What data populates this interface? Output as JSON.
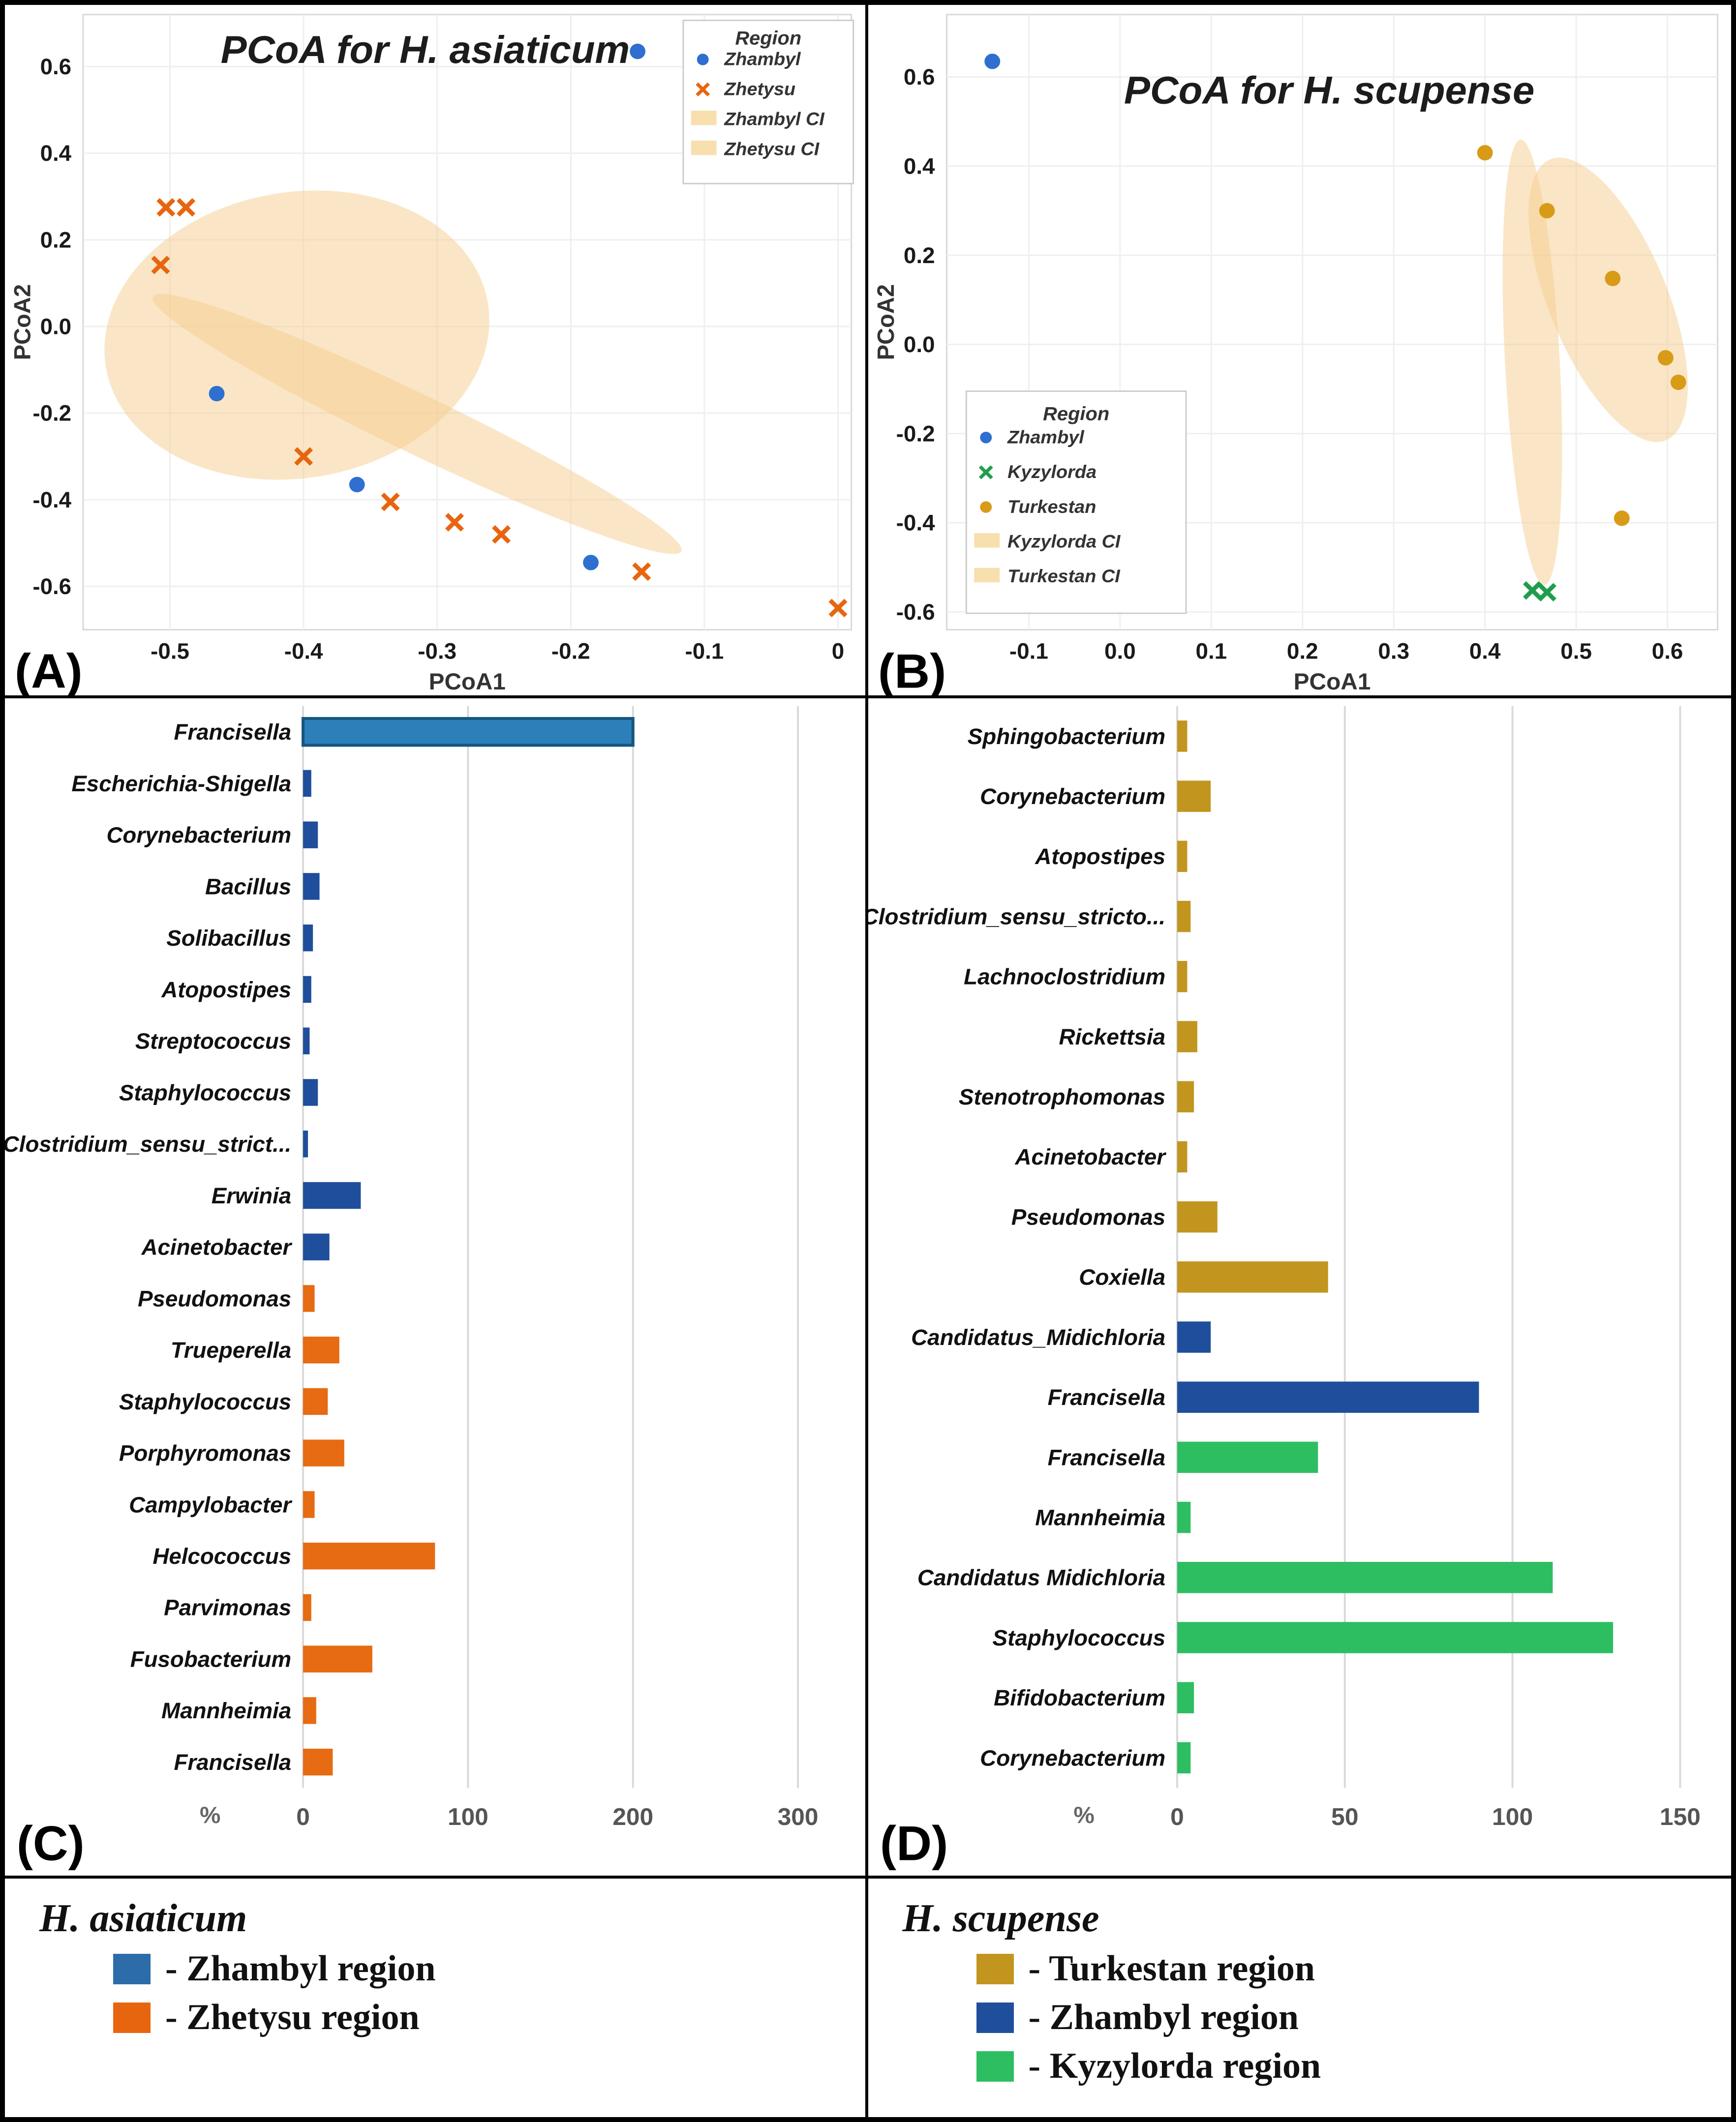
{
  "chart_data": [
    {
      "id": "A",
      "type": "scatter",
      "panel_letter": "(A)",
      "title": "PCoA for H. asiaticum",
      "xlabel": "PCoA1",
      "ylabel": "PCoA2",
      "xlim": [
        -0.565,
        0.01
      ],
      "ylim": [
        -0.7,
        0.72
      ],
      "xticks": [
        -0.5,
        -0.4,
        -0.3,
        -0.2,
        -0.1,
        0
      ],
      "xtick_labels": [
        "-0.5",
        "-0.4",
        "-0.3",
        "-0.2",
        "-0.1",
        "0"
      ],
      "yticks": [
        0.6,
        0.4,
        0.2,
        0.0,
        -0.2,
        -0.4,
        -0.6
      ],
      "ytick_labels": [
        "0.6",
        "0.4",
        "0.2",
        "0.0",
        "-0.2",
        "-0.4",
        "-0.6"
      ],
      "ci_color": "#F5CE8E",
      "legend": {
        "title": "Region",
        "entries": [
          {
            "label": "Zhambyl",
            "marker": "dot",
            "color": "#2E6FD0"
          },
          {
            "label": "Zhetysu",
            "marker": "x",
            "color": "#E8650F"
          },
          {
            "label": "Zhambyl CI",
            "marker": "patch",
            "color": "#F8DFAE"
          },
          {
            "label": "Zhetysu CI",
            "marker": "patch",
            "color": "#F8DFAE"
          }
        ]
      },
      "ellipses": [
        {
          "cx": -0.405,
          "cy": -0.02,
          "rx": 0.145,
          "ry": 0.33,
          "rotate": -10
        },
        {
          "cx": -0.315,
          "cy": -0.225,
          "rx": 0.22,
          "ry": 0.068,
          "rotate": 26
        }
      ],
      "series": [
        {
          "name": "Zhambyl",
          "marker": "dot",
          "color": "#2E6FD0",
          "points": [
            [
              -0.15,
              0.635
            ],
            [
              -0.465,
              -0.155
            ],
            [
              -0.36,
              -0.365
            ],
            [
              -0.185,
              -0.545
            ]
          ]
        },
        {
          "name": "Zhetysu",
          "marker": "x",
          "color": "#E8650F",
          "points": [
            [
              -0.503,
              0.275
            ],
            [
              -0.488,
              0.275
            ],
            [
              -0.507,
              0.142
            ],
            [
              -0.4,
              -0.3
            ],
            [
              -0.335,
              -0.405
            ],
            [
              -0.287,
              -0.452
            ],
            [
              -0.252,
              -0.48
            ],
            [
              -0.147,
              -0.566
            ],
            [
              0.0,
              -0.65
            ]
          ]
        }
      ]
    },
    {
      "id": "B",
      "type": "scatter",
      "panel_letter": "(B)",
      "title": "PCoA for H. scupense",
      "xlabel": "PCoA1",
      "ylabel": "PCoA2",
      "xlim": [
        -0.19,
        0.655
      ],
      "ylim": [
        -0.64,
        0.74
      ],
      "xticks": [
        -0.1,
        0.0,
        0.1,
        0.2,
        0.3,
        0.4,
        0.5,
        0.6
      ],
      "xtick_labels": [
        "-0.1",
        "0.0",
        "0.1",
        "0.2",
        "0.3",
        "0.4",
        "0.5",
        "0.6"
      ],
      "yticks": [
        0.6,
        0.4,
        0.2,
        0.0,
        -0.2,
        -0.4,
        -0.6
      ],
      "ytick_labels": [
        "0.6",
        "0.4",
        "0.2",
        "0.0",
        "-0.2",
        "-0.4",
        "-0.6"
      ],
      "ci_color": "#F5CE8E",
      "legend": {
        "title": "Region",
        "entries": [
          {
            "label": "Zhambyl",
            "marker": "dot",
            "color": "#2E6FD0"
          },
          {
            "label": "Kyzylorda",
            "marker": "x",
            "color": "#1E9E4C"
          },
          {
            "label": "Turkestan",
            "marker": "dot",
            "color": "#D89B18"
          },
          {
            "label": "Kyzylorda CI",
            "marker": "patch",
            "color": "#F8DFAE"
          },
          {
            "label": "Turkestan CI",
            "marker": "patch",
            "color": "#F8DFAE"
          }
        ]
      },
      "ellipses": [
        {
          "cx": 0.452,
          "cy": -0.04,
          "rx": 0.03,
          "ry": 0.5,
          "rotate": -3
        },
        {
          "cx": 0.535,
          "cy": 0.1,
          "rx": 0.065,
          "ry": 0.34,
          "rotate": -22
        }
      ],
      "series": [
        {
          "name": "Zhambyl",
          "marker": "dot",
          "color": "#2E6FD0",
          "points": [
            [
              -0.14,
              0.635
            ]
          ]
        },
        {
          "name": "Turkestan",
          "marker": "dot",
          "color": "#D89B18",
          "points": [
            [
              0.4,
              0.43
            ],
            [
              0.468,
              0.3
            ],
            [
              0.54,
              0.148
            ],
            [
              0.598,
              -0.03
            ],
            [
              0.612,
              -0.085
            ],
            [
              0.55,
              -0.39
            ]
          ]
        },
        {
          "name": "Kyzylorda",
          "marker": "x",
          "color": "#1E9E4C",
          "points": [
            [
              0.452,
              -0.552
            ],
            [
              0.468,
              -0.556
            ]
          ]
        }
      ]
    },
    {
      "id": "C",
      "type": "bar",
      "panel_letter": "(C)",
      "xlabel": "%",
      "xlim": [
        0,
        330
      ],
      "xticks": [
        0,
        100,
        200,
        300
      ],
      "xtick_labels": [
        "0",
        "100",
        "200",
        "300"
      ],
      "bars": [
        {
          "label": "Francisella",
          "value": 200,
          "color": "#2C7FB8",
          "stroke": "#17557E"
        },
        {
          "label": "Escherichia-Shigella",
          "value": 5,
          "color": "#1F4E9C"
        },
        {
          "label": "Corynebacterium",
          "value": 9,
          "color": "#1F4E9C"
        },
        {
          "label": "Bacillus",
          "value": 10,
          "color": "#1F4E9C"
        },
        {
          "label": "Solibacillus",
          "value": 6,
          "color": "#1F4E9C"
        },
        {
          "label": "Atopostipes",
          "value": 5,
          "color": "#1F4E9C"
        },
        {
          "label": "Streptococcus",
          "value": 4,
          "color": "#1F4E9C"
        },
        {
          "label": "Staphylococcus",
          "value": 9,
          "color": "#1F4E9C"
        },
        {
          "label": "Clostridium_sensu_strict...",
          "value": 3,
          "color": "#1F4E9C"
        },
        {
          "label": "Erwinia",
          "value": 35,
          "color": "#1F4E9C"
        },
        {
          "label": "Acinetobacter",
          "value": 16,
          "color": "#1F4E9C"
        },
        {
          "label": "Pseudomonas",
          "value": 7,
          "color": "#E66B12"
        },
        {
          "label": "Trueperella",
          "value": 22,
          "color": "#E66B12"
        },
        {
          "label": "Staphylococcus",
          "value": 15,
          "color": "#E66B12"
        },
        {
          "label": "Porphyromonas",
          "value": 25,
          "color": "#E66B12"
        },
        {
          "label": "Campylobacter",
          "value": 7,
          "color": "#E66B12"
        },
        {
          "label": "Helcococcus",
          "value": 80,
          "color": "#E66B12"
        },
        {
          "label": "Parvimonas",
          "value": 5,
          "color": "#E66B12"
        },
        {
          "label": "Fusobacterium",
          "value": 42,
          "color": "#E66B12"
        },
        {
          "label": "Mannheimia",
          "value": 8,
          "color": "#E66B12"
        },
        {
          "label": "Francisella",
          "value": 18,
          "color": "#E66B12"
        }
      ]
    },
    {
      "id": "D",
      "type": "bar",
      "panel_letter": "(D)",
      "xlabel": "%",
      "xlim": [
        0,
        160
      ],
      "xticks": [
        0,
        50,
        100,
        150
      ],
      "xtick_labels": [
        "0",
        "50",
        "100",
        "150"
      ],
      "bars": [
        {
          "label": "Sphingobacterium",
          "value": 3,
          "color": "#C2951F"
        },
        {
          "label": "Corynebacterium",
          "value": 10,
          "color": "#C2951F"
        },
        {
          "label": "Atopostipes",
          "value": 3,
          "color": "#C2951F"
        },
        {
          "label": "Clostridium_sensu_stricto...",
          "value": 4,
          "color": "#C2951F"
        },
        {
          "label": "Lachnoclostridium",
          "value": 3,
          "color": "#C2951F"
        },
        {
          "label": "Rickettsia",
          "value": 6,
          "color": "#C2951F"
        },
        {
          "label": "Stenotrophomonas",
          "value": 5,
          "color": "#C2951F"
        },
        {
          "label": "Acinetobacter",
          "value": 3,
          "color": "#C2951F"
        },
        {
          "label": "Pseudomonas",
          "value": 12,
          "color": "#C2951F"
        },
        {
          "label": "Coxiella",
          "value": 45,
          "color": "#C2951F"
        },
        {
          "label": "Candidatus_Midichloria",
          "value": 10,
          "color": "#1F4E9C"
        },
        {
          "label": "Francisella",
          "value": 90,
          "color": "#1F4E9C"
        },
        {
          "label": "Francisella",
          "value": 42,
          "color": "#2EBE62"
        },
        {
          "label": "Mannheimia",
          "value": 4,
          "color": "#2EBE62"
        },
        {
          "label": "Candidatus Midichloria",
          "value": 112,
          "color": "#2EBE62"
        },
        {
          "label": "Staphylococcus",
          "value": 130,
          "color": "#2EBE62"
        },
        {
          "label": "Bifidobacterium",
          "value": 5,
          "color": "#2EBE62"
        },
        {
          "label": "Corynebacterium",
          "value": 4,
          "color": "#2EBE62"
        }
      ]
    }
  ],
  "bottom_legend": {
    "left": {
      "title": "H. asiaticum",
      "items": [
        {
          "color": "#2C6CA8",
          "label": "- Zhambyl region"
        },
        {
          "color": "#E8650F",
          "label": "- Zhetysu region"
        }
      ]
    },
    "right": {
      "title": "H. scupense",
      "items": [
        {
          "color": "#C2951F",
          "label": "- Turkestan region"
        },
        {
          "color": "#1F4E9C",
          "label": "- Zhambyl region"
        },
        {
          "color": "#2EBE62",
          "label": "- Kyzylorda region"
        }
      ]
    }
  }
}
